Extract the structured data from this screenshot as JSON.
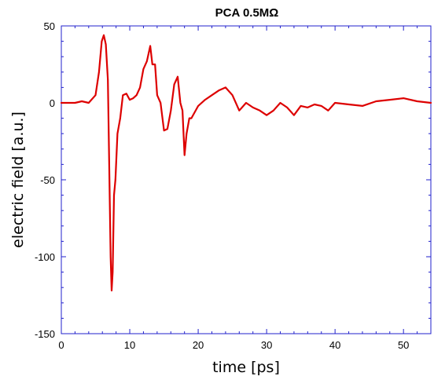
{
  "chart_data": {
    "type": "line",
    "title": "PCA 0.5MΩ",
    "xlabel": "time [ps]",
    "ylabel": "electric field [a.u.]",
    "xlim": [
      0,
      54
    ],
    "ylim": [
      -150,
      50
    ],
    "xticks": [
      0,
      10,
      20,
      30,
      40,
      50
    ],
    "yticks": [
      -150,
      -100,
      -50,
      0,
      50
    ],
    "grid": false,
    "legend": "none",
    "line_color": "#dd0000",
    "axis_color": "#2222cc",
    "series": [
      {
        "x": [
          0,
          1,
          2,
          3,
          4,
          5,
          5.5,
          5.9,
          6.2,
          6.5,
          6.8,
          7.0,
          7.2,
          7.35,
          7.5,
          7.7,
          7.9,
          8.2,
          8.6,
          9.0,
          9.5,
          10.0,
          10.5,
          11.0,
          11.5,
          12.0,
          12.5,
          13.0,
          13.3,
          13.7,
          14.0,
          14.5,
          15.0,
          15.5,
          16.0,
          16.5,
          17.0,
          17.4,
          17.7,
          18.0,
          18.3,
          18.7,
          19.0,
          20.0,
          21.0,
          22.0,
          23.0,
          24.0,
          25.0,
          26.0,
          27.0,
          28.0,
          29.0,
          30.0,
          31.0,
          32.0,
          33.0,
          34.0,
          35.0,
          36.0,
          37.0,
          38.0,
          39.0,
          40.0,
          42.0,
          44.0,
          46.0,
          48.0,
          50.0,
          52.0,
          54.0
        ],
        "y": [
          0,
          0,
          0,
          1,
          0,
          5,
          20,
          40,
          44,
          38,
          15,
          -40,
          -100,
          -122,
          -110,
          -60,
          -50,
          -20,
          -10,
          5,
          6,
          2,
          3,
          5,
          10,
          22,
          27,
          37,
          25,
          25,
          5,
          0,
          -18,
          -17,
          -5,
          12,
          17,
          0,
          -5,
          -34,
          -20,
          -10,
          -10,
          -2,
          2,
          5,
          8,
          10,
          5,
          -5,
          0,
          -3,
          -5,
          -8,
          -5,
          0,
          -3,
          -8,
          -2,
          -3,
          -1,
          -2,
          -5,
          0,
          -1,
          -2,
          1,
          2,
          3,
          1,
          0
        ]
      }
    ]
  }
}
